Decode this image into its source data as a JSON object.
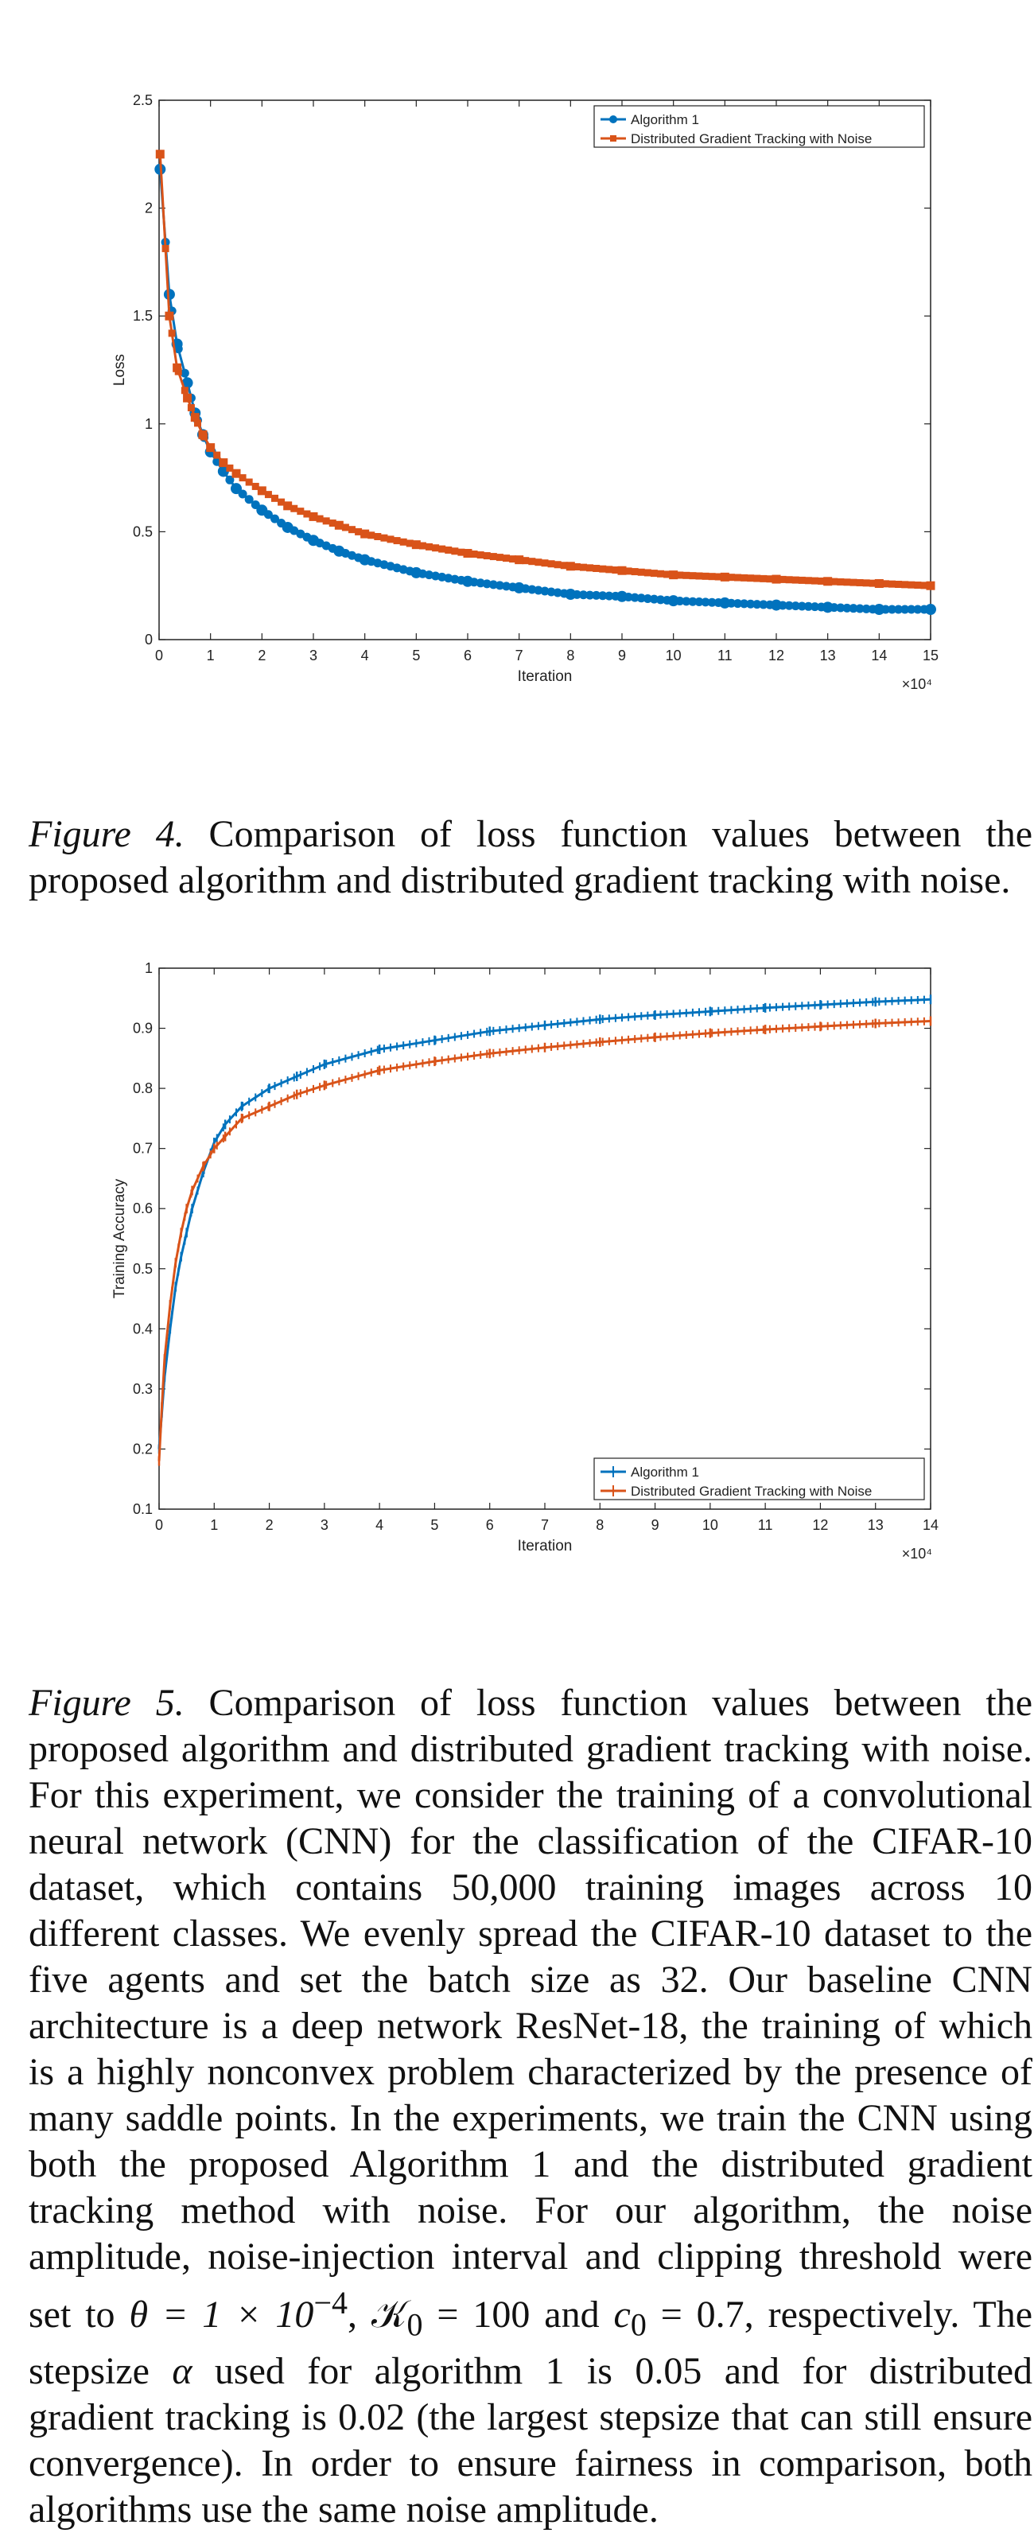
{
  "colors": {
    "algorithm": "#0072BD",
    "baseline": "#D95319",
    "axis": "#222222"
  },
  "figure4": {
    "caption_label": "Figure 4.",
    "caption_text": "Comparison of loss function values between the proposed algorithm and distributed gradient tracking with noise.",
    "chart_data": {
      "type": "line",
      "title": "",
      "xlabel": "Iteration",
      "ylabel": "Loss",
      "x_multiplier": "×10⁴",
      "xlim": [
        0,
        15
      ],
      "ylim": [
        0,
        2.5
      ],
      "xticks": [
        0,
        1,
        2,
        3,
        4,
        5,
        6,
        7,
        8,
        9,
        10,
        11,
        12,
        13,
        14,
        15
      ],
      "yticks": [
        0,
        0.5,
        1,
        1.5,
        2,
        2.5
      ],
      "legend_position": "top-right",
      "grid": false,
      "series": [
        {
          "name": "Algorithm 1",
          "color": "#0072BD",
          "marker": "circle",
          "x": [
            0.02,
            0.2,
            0.35,
            0.55,
            0.7,
            0.85,
            1.0,
            1.25,
            1.5,
            2,
            2.5,
            3,
            3.5,
            4,
            5,
            6,
            7,
            8,
            9,
            10,
            11,
            12,
            13,
            14,
            15
          ],
          "y": [
            2.18,
            1.6,
            1.37,
            1.19,
            1.05,
            0.95,
            0.87,
            0.78,
            0.7,
            0.6,
            0.52,
            0.46,
            0.41,
            0.37,
            0.31,
            0.27,
            0.24,
            0.21,
            0.2,
            0.18,
            0.17,
            0.16,
            0.15,
            0.14,
            0.14
          ]
        },
        {
          "name": "Distributed Gradient Tracking with Noise",
          "color": "#D95319",
          "marker": "square",
          "x": [
            0.02,
            0.2,
            0.35,
            0.55,
            0.7,
            0.85,
            1.0,
            1.25,
            1.5,
            2,
            2.5,
            3,
            3.5,
            4,
            5,
            6,
            7,
            8,
            9,
            10,
            11,
            12,
            13,
            14,
            15
          ],
          "y": [
            2.25,
            1.5,
            1.26,
            1.12,
            1.03,
            0.95,
            0.89,
            0.82,
            0.77,
            0.69,
            0.62,
            0.57,
            0.53,
            0.49,
            0.44,
            0.4,
            0.37,
            0.34,
            0.32,
            0.3,
            0.29,
            0.28,
            0.27,
            0.26,
            0.25
          ]
        }
      ]
    }
  },
  "figure5": {
    "caption_label": "Figure 5.",
    "caption_text": "Comparison of loss function values between the proposed algorithm and distributed gradient tracking with noise.",
    "chart_data": {
      "type": "line",
      "title": "",
      "xlabel": "Iteration",
      "ylabel": "Training Accuracy",
      "x_multiplier": "×10⁴",
      "xlim": [
        0,
        14
      ],
      "ylim": [
        0.1,
        1
      ],
      "xticks": [
        0,
        1,
        2,
        3,
        4,
        5,
        6,
        7,
        8,
        9,
        10,
        11,
        12,
        13,
        14
      ],
      "yticks": [
        0.1,
        0.2,
        0.3,
        0.4,
        0.5,
        0.6,
        0.7,
        0.8,
        0.9,
        1
      ],
      "legend_position": "bottom-right",
      "grid": false,
      "series": [
        {
          "name": "Algorithm 1",
          "color": "#0072BD",
          "marker": "errorbar",
          "x": [
            0,
            0.05,
            0.1,
            0.2,
            0.3,
            0.4,
            0.5,
            0.6,
            0.8,
            1.0,
            1.2,
            1.5,
            2,
            2.5,
            3,
            4,
            5,
            6,
            7,
            8,
            9,
            10,
            11,
            12,
            13,
            14
          ],
          "y": [
            0.2,
            0.26,
            0.32,
            0.4,
            0.47,
            0.52,
            0.56,
            0.6,
            0.66,
            0.71,
            0.74,
            0.77,
            0.8,
            0.82,
            0.84,
            0.865,
            0.88,
            0.895,
            0.905,
            0.915,
            0.922,
            0.928,
            0.934,
            0.939,
            0.944,
            0.948
          ]
        },
        {
          "name": "Distributed Gradient Tracking with Noise",
          "color": "#D95319",
          "marker": "errorbar",
          "x": [
            0,
            0.05,
            0.1,
            0.2,
            0.3,
            0.4,
            0.5,
            0.6,
            0.8,
            1.0,
            1.2,
            1.5,
            2,
            2.5,
            3,
            4,
            5,
            6,
            7,
            8,
            9,
            10,
            11,
            12,
            13,
            14
          ],
          "y": [
            0.18,
            0.27,
            0.35,
            0.44,
            0.51,
            0.56,
            0.6,
            0.63,
            0.67,
            0.7,
            0.72,
            0.75,
            0.77,
            0.79,
            0.805,
            0.83,
            0.845,
            0.858,
            0.868,
            0.877,
            0.885,
            0.892,
            0.898,
            0.903,
            0.908,
            0.912
          ]
        }
      ]
    }
  },
  "body": {
    "p1": "this experiment, we consider the training of a convolutional neural network (CNN) for the classification of the CIFAR-10 dataset, which contains 50,000 training images across 10 different classes. We evenly spread the CIFAR-10 dataset to the five agents and set the batch size as 32. Our baseline CNN architecture is a deep network ResNet-18, the training of which is a highly nonconvex problem characterized by the presence of many saddle points. In the experiments, we train the CNN using both the proposed Algorithm 1 and the distributed gradient tracking method with noise. For our algorithm, the noise amplitude, noise-injection interval and clipping threshold were set to",
    "theta_expr": "θ = 1 × 10",
    "theta_exp": "−4",
    "k_expr": "𝒦",
    "k_sub": "0",
    "k_val": " = 100",
    "and_word": "and",
    "c_expr": "c",
    "c_sub": "0",
    "c_val": " = 0.7",
    "p2_a": ", respectively. The stepsize",
    "alpha": "α",
    "p2_b": "used for algorithm 1 is 0.05 and for distributed gradient tracking is 0.02 (the largest stepsize that can still ensure convergence). In order to ensure fairness in comparison, both algorithms use the same noise amplitude.",
    "for_word": "For"
  }
}
